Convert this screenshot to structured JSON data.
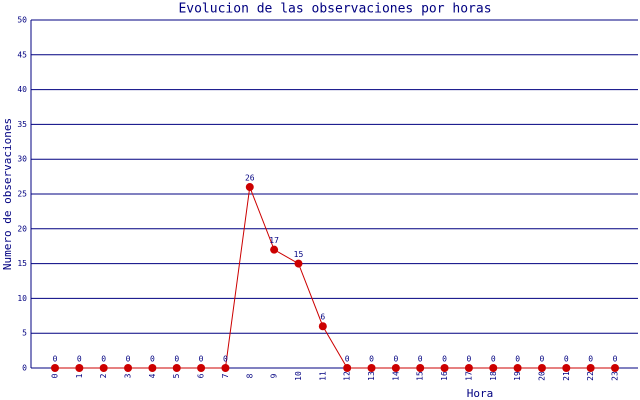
{
  "chart_data": {
    "type": "line",
    "title": "Evolucion de las observaciones por horas",
    "x_label": "Hora",
    "y_label": "Numero de observaciones",
    "categories": [
      "0",
      "1",
      "2",
      "3",
      "4",
      "5",
      "6",
      "7",
      "8",
      "9",
      "10",
      "11",
      "12",
      "13",
      "14",
      "15",
      "16",
      "17",
      "18",
      "19",
      "20",
      "21",
      "22",
      "23"
    ],
    "series": [
      {
        "name": "observaciones",
        "color": "#cc0000",
        "values": [
          0,
          0,
          0,
          0,
          0,
          0,
          0,
          0,
          26,
          17,
          15,
          6,
          0,
          0,
          0,
          0,
          0,
          0,
          0,
          0,
          0,
          0,
          0,
          0
        ]
      }
    ],
    "ylim": [
      0,
      50
    ],
    "yticks": [
      0,
      5,
      10,
      15,
      20,
      25,
      30,
      35,
      40,
      45,
      50
    ],
    "grid": true
  }
}
